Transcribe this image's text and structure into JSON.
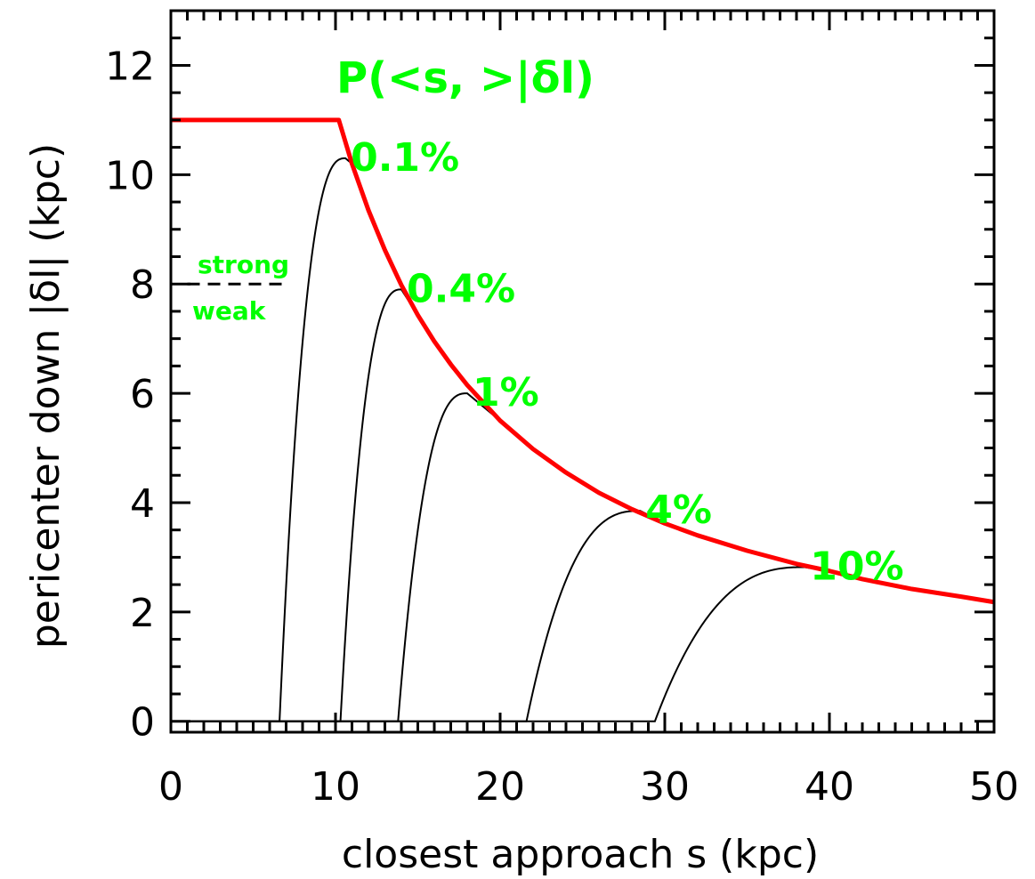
{
  "chart_data": {
    "type": "line",
    "title": "",
    "xlabel": "closest approach s (kpc)",
    "ylabel": "pericenter down |δl| (kpc)",
    "xlim": [
      0,
      50
    ],
    "ylim": [
      -0.2,
      13
    ],
    "x_ticks": [
      0,
      10,
      20,
      30,
      40,
      50
    ],
    "x_tick_labels": [
      "0",
      "10",
      "20",
      "30",
      "40",
      "50"
    ],
    "y_ticks": [
      0,
      2,
      4,
      6,
      8,
      10,
      12
    ],
    "y_tick_labels": [
      "0",
      "2",
      "4",
      "6",
      "8",
      "10",
      "12"
    ],
    "grid": false,
    "legend_title": "P(<s, >|δl)",
    "envelope": {
      "color": "#ff0000",
      "points": [
        [
          0,
          11
        ],
        [
          10.2,
          11
        ],
        [
          11,
          10.2
        ],
        [
          12,
          9.35
        ],
        [
          13,
          8.62
        ],
        [
          14,
          7.98
        ],
        [
          15,
          7.43
        ],
        [
          16,
          6.95
        ],
        [
          17,
          6.53
        ],
        [
          18,
          6.15
        ],
        [
          20,
          5.5
        ],
        [
          22,
          4.98
        ],
        [
          24,
          4.55
        ],
        [
          26,
          4.18
        ],
        [
          28,
          3.88
        ],
        [
          30,
          3.62
        ],
        [
          32,
          3.4
        ],
        [
          35,
          3.12
        ],
        [
          38,
          2.88
        ],
        [
          40,
          2.75
        ],
        [
          42,
          2.6
        ],
        [
          45,
          2.42
        ],
        [
          48,
          2.28
        ],
        [
          50,
          2.18
        ]
      ]
    },
    "series": [
      {
        "label": "0.1%",
        "color": "#000000",
        "peak": [
          10.6,
          10.3
        ],
        "root": 6.6
      },
      {
        "label": "0.4%",
        "color": "#000000",
        "peak": [
          14.0,
          7.9
        ],
        "root": 10.3
      },
      {
        "label": "1%",
        "color": "#000000",
        "peak": [
          18.0,
          6.0
        ],
        "root": 13.8
      },
      {
        "label": "4%",
        "color": "#000000",
        "peak": [
          28.5,
          3.85
        ],
        "root": 21.6
      },
      {
        "label": "10%",
        "color": "#000000",
        "peak": [
          38.5,
          2.82
        ],
        "root": 29.4
      }
    ],
    "threshold": {
      "y": 8,
      "x_range": [
        1,
        7.2
      ],
      "style": "dashed",
      "label_above": "strong",
      "label_below": "weak"
    },
    "label_color": "#00ff00"
  }
}
